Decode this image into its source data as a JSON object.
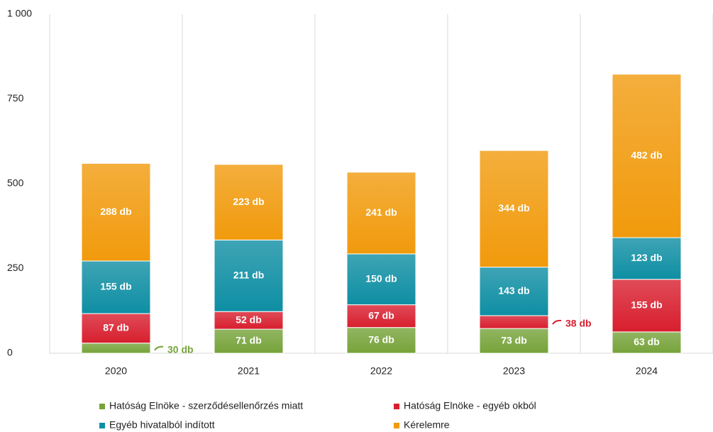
{
  "chart_data": {
    "type": "bar",
    "stacked": true,
    "categories": [
      "2020",
      "2021",
      "2022",
      "2023",
      "2024"
    ],
    "series": [
      {
        "name": "Hatóság Elnöke - szerződésellenőrzés miatt",
        "color": "#76a33a",
        "values": [
          30,
          71,
          76,
          73,
          63
        ],
        "value_labels": [
          "30 db",
          "71 db",
          "76 db",
          "73 db",
          "63 db"
        ]
      },
      {
        "name": "Hatóság Elnöke - egyéb okból",
        "color": "#d81e2e",
        "values": [
          87,
          52,
          67,
          38,
          155
        ],
        "value_labels": [
          "87 db",
          "52 db",
          "67 db",
          "38 db",
          "155 db"
        ]
      },
      {
        "name": "Egyéb hivatalból indított",
        "color": "#0e8ea3",
        "values": [
          155,
          211,
          150,
          143,
          123
        ],
        "value_labels": [
          "155 db",
          "211 db",
          "150 db",
          "143 db",
          "123 db"
        ]
      },
      {
        "name": "Kérelemre",
        "color": "#f19a0c",
        "values": [
          288,
          223,
          241,
          344,
          482
        ],
        "value_labels": [
          "288 db",
          "223 db",
          "241 db",
          "344 db",
          "482 db"
        ]
      }
    ],
    "ylim": [
      0,
      1000
    ],
    "yticks": [
      0,
      250,
      500,
      750,
      {
        "value": 1000,
        "label": "1 000"
      }
    ],
    "grid": true,
    "legend": "bottom"
  }
}
